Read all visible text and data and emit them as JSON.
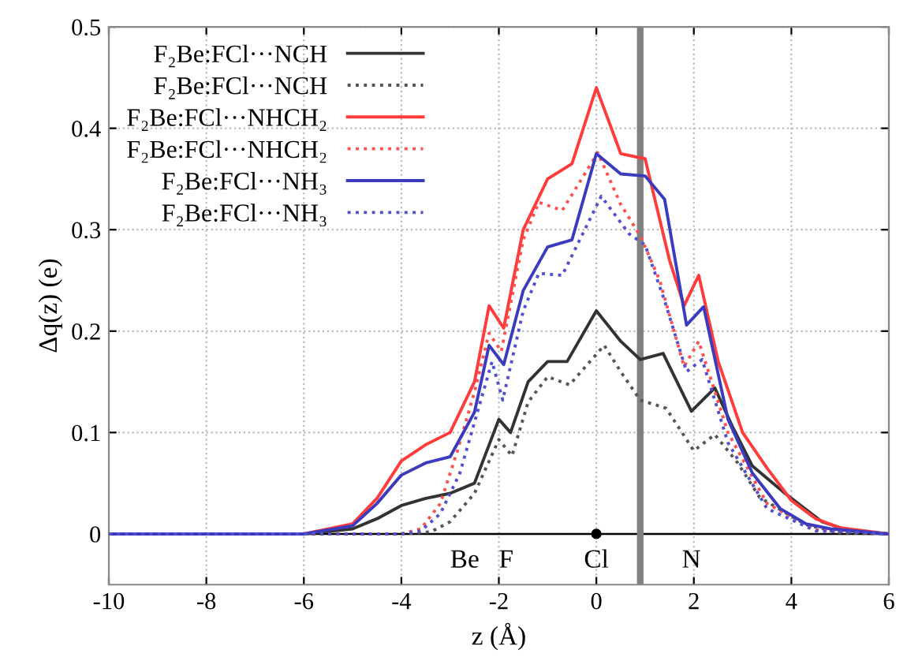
{
  "chart_data": {
    "type": "line",
    "xlabel": "z (Å)",
    "ylabel": "Δq(z) (e)",
    "xlim": [
      -10,
      6
    ],
    "ylim": [
      -0.05,
      0.5
    ],
    "xticks": [
      -10,
      -8,
      -6,
      -4,
      -2,
      0,
      2,
      4,
      6
    ],
    "yticks": [
      0,
      0.1,
      0.2,
      0.3,
      0.4,
      0.5
    ],
    "grid": true,
    "legend": "top left",
    "series": [
      {
        "name": "F₂Be:FCl···NCH",
        "color": "#333333",
        "line_style": "solid",
        "x": [
          -10,
          -6,
          -5,
          -4.5,
          -4,
          -3.5,
          -3,
          -2.5,
          -2.0,
          -1.76,
          -1.4,
          -1,
          -0.6,
          0,
          0.5,
          0.9,
          1.37,
          1.95,
          2.43,
          2.8,
          3.2,
          3.87,
          4.63,
          5.2,
          6
        ],
        "values": [
          0,
          0,
          0.005,
          0.015,
          0.028,
          0.035,
          0.04,
          0.05,
          0.113,
          0.1,
          0.15,
          0.17,
          0.17,
          0.22,
          0.19,
          0.172,
          0.178,
          0.121,
          0.144,
          0.105,
          0.067,
          0.04,
          0.012,
          0.003,
          0
        ]
      },
      {
        "name": "F₂Be:FCl···NCH",
        "color": "#555555",
        "line_style": "dotted",
        "x": [
          -10,
          -4,
          -3.4,
          -3,
          -2.5,
          -2.0,
          -1.73,
          -1.4,
          -1,
          -0.55,
          0.16,
          0.5,
          0.9,
          1.43,
          2.0,
          2.43,
          2.9,
          3.35,
          4.3,
          5,
          6
        ],
        "values": [
          0,
          0,
          0.002,
          0.012,
          0.04,
          0.093,
          0.077,
          0.13,
          0.155,
          0.147,
          0.186,
          0.16,
          0.132,
          0.124,
          0.082,
          0.098,
          0.07,
          0.036,
          0.009,
          0.001,
          0
        ]
      },
      {
        "name": "F₂Be:FCl···NHCH₂",
        "color": "#ff3b3b",
        "line_style": "solid",
        "x": [
          -10,
          -6,
          -5,
          -4.5,
          -4,
          -3.5,
          -3,
          -2.5,
          -2.2,
          -1.9,
          -1.5,
          -1,
          -0.5,
          0,
          0.5,
          1,
          1.5,
          1.8,
          2.1,
          2.5,
          3,
          3.5,
          4,
          4.5,
          5,
          6
        ],
        "values": [
          0,
          0,
          0.01,
          0.035,
          0.072,
          0.088,
          0.1,
          0.15,
          0.225,
          0.203,
          0.3,
          0.35,
          0.365,
          0.44,
          0.375,
          0.37,
          0.27,
          0.225,
          0.255,
          0.17,
          0.1,
          0.065,
          0.033,
          0.015,
          0.006,
          0
        ]
      },
      {
        "name": "F₂Be:FCl···NHCH₂",
        "color": "#ff5050",
        "line_style": "dotted",
        "x": [
          -10,
          -4,
          -3.6,
          -3.2,
          -2.85,
          -2.5,
          -2.2,
          -1.95,
          -1.5,
          -1.18,
          -0.7,
          0.03,
          0.5,
          0.9,
          1.3,
          1.8,
          2.1,
          2.7,
          3.5,
          4.5,
          6
        ],
        "values": [
          0,
          0,
          0.005,
          0.03,
          0.082,
          0.14,
          0.198,
          0.18,
          0.29,
          0.327,
          0.319,
          0.376,
          0.325,
          0.294,
          0.25,
          0.165,
          0.19,
          0.1,
          0.03,
          0.004,
          0
        ]
      },
      {
        "name": "F₂Be:FCl···NH₃",
        "color": "#3b3bc0",
        "line_style": "solid",
        "x": [
          -10,
          -6,
          -5,
          -4.5,
          -4,
          -3.5,
          -3,
          -2.5,
          -2.2,
          -1.9,
          -1.5,
          -1,
          -0.5,
          0,
          0.5,
          1,
          1.4,
          1.85,
          2.2,
          2.7,
          3.2,
          3.77,
          4.3,
          4.8,
          6
        ],
        "values": [
          0,
          0,
          0.008,
          0.03,
          0.058,
          0.07,
          0.076,
          0.12,
          0.186,
          0.167,
          0.24,
          0.283,
          0.29,
          0.375,
          0.355,
          0.353,
          0.33,
          0.206,
          0.224,
          0.113,
          0.06,
          0.025,
          0.01,
          0.005,
          0
        ]
      },
      {
        "name": "F₂Be:FCl···NH₃",
        "color": "#5050d0",
        "line_style": "dotted",
        "x": [
          -10,
          -4,
          -3.6,
          -3.2,
          -2.8,
          -2.5,
          -2.14,
          -1.92,
          -1.5,
          -1.18,
          -0.7,
          0.1,
          0.67,
          1.0,
          1.4,
          1.85,
          2.17,
          2.7,
          3.5,
          4.5,
          6
        ],
        "values": [
          0,
          0,
          0.003,
          0.02,
          0.06,
          0.11,
          0.17,
          0.132,
          0.22,
          0.257,
          0.255,
          0.333,
          0.296,
          0.285,
          0.23,
          0.16,
          0.172,
          0.09,
          0.025,
          0.003,
          0
        ]
      },
      {
        "type": "scatter",
        "color": "#000000",
        "marker": "circle",
        "x": [
          0
        ],
        "values": [
          0
        ]
      }
    ],
    "ref_lines": [
      {
        "axis": "y",
        "value": 0,
        "color": "#000000",
        "line_style": "solid"
      },
      {
        "axis": "x",
        "value": 0.9,
        "color": "#808080",
        "line_style": "solid"
      }
    ],
    "annotations": [
      {
        "text": "Be",
        "x": -2.7,
        "y": 0
      },
      {
        "text": "F",
        "x": -1.85,
        "y": 0
      },
      {
        "text": "Cl",
        "x": 0,
        "y": 0
      },
      {
        "text": "N",
        "x": 1.95,
        "y": 0
      }
    ]
  }
}
